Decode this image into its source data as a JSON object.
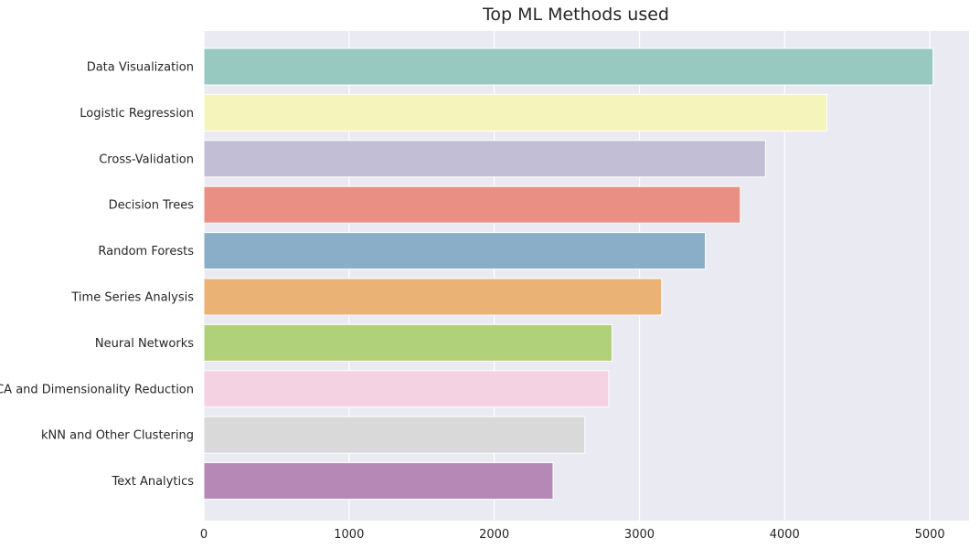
{
  "chart_data": {
    "type": "bar",
    "orientation": "horizontal",
    "title": "Top ML Methods used",
    "xlabel": "",
    "ylabel": "",
    "xlim": [
      0,
      5270
    ],
    "xticks": [
      0,
      1000,
      2000,
      3000,
      4000,
      5000
    ],
    "xtick_labels": [
      "0",
      "1000",
      "2000",
      "3000",
      "4000",
      "5000"
    ],
    "grid": true,
    "background_color": "#eaeaf2",
    "categories": [
      "Data Visualization",
      "Logistic Regression",
      "Cross-Validation",
      "Decision Trees",
      "Random Forests",
      "Time Series Analysis",
      "Neural Networks",
      "PCA and Dimensionality Reduction",
      "kNN and Other Clustering",
      "Text Analytics"
    ],
    "values": [
      5022,
      4291,
      3868,
      3695,
      3454,
      3153,
      2811,
      2789,
      2624,
      2405
    ],
    "colors": [
      "#97c9c0",
      "#f5f5bb",
      "#c2bed5",
      "#ea8f83",
      "#8aaec8",
      "#ebb275",
      "#b0d17a",
      "#f5d2e2",
      "#d9d9d9",
      "#b688b6"
    ]
  }
}
